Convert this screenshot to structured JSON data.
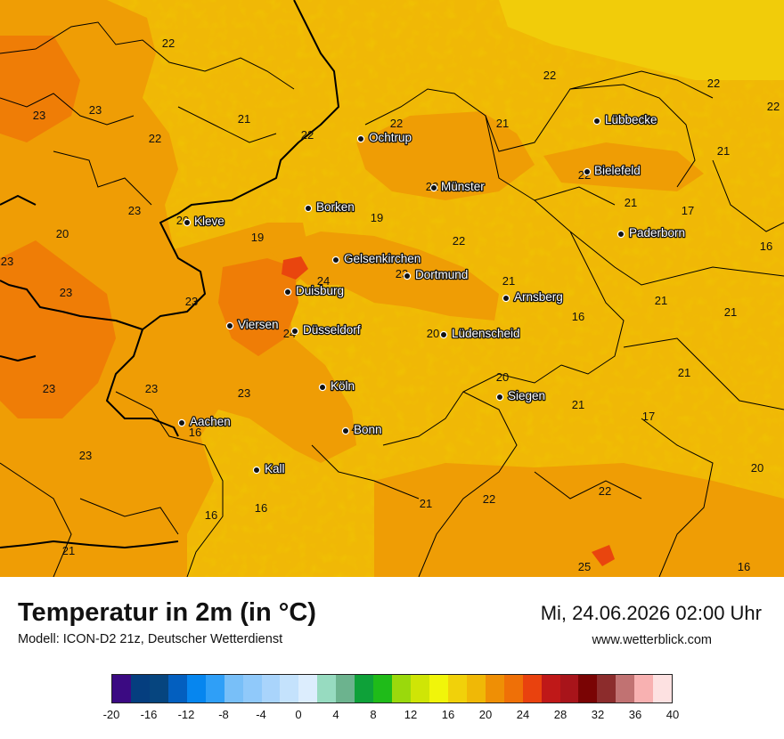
{
  "map": {
    "colors": {
      "c16": "#f1cc0a",
      "c20": "#f0b806",
      "c22": "#ef9d05",
      "c24": "#ef7d06",
      "c26": "#e9450e",
      "border_national": "#000000",
      "border_regional": "#000000"
    },
    "cities": [
      {
        "name": "Lübbecke"
      },
      {
        "name": "Ochtrup"
      },
      {
        "name": "Bielefeld"
      },
      {
        "name": "Münster"
      },
      {
        "name": "Borken"
      },
      {
        "name": "Kleve"
      },
      {
        "name": "Paderborn"
      },
      {
        "name": "Gelsenkirchen"
      },
      {
        "name": "Dortmund"
      },
      {
        "name": "Duisburg"
      },
      {
        "name": "Arnsberg"
      },
      {
        "name": "Viersen"
      },
      {
        "name": "Düsseldorf"
      },
      {
        "name": "Lüdenscheid"
      },
      {
        "name": "Köln"
      },
      {
        "name": "Siegen"
      },
      {
        "name": "Aachen"
      },
      {
        "name": "Bonn"
      },
      {
        "name": "Kall"
      }
    ],
    "values": [
      "22",
      "22",
      "23",
      "23",
      "22",
      "21",
      "22",
      "22",
      "21",
      "21",
      "22",
      "22",
      "21",
      "22",
      "22",
      "21",
      "23",
      "19",
      "17",
      "20",
      "19",
      "22",
      "16",
      "23",
      "23",
      "24",
      "21",
      "23",
      "21",
      "16",
      "21",
      "24",
      "20",
      "23",
      "23",
      "23",
      "20",
      "21",
      "17",
      "21",
      "23",
      "16",
      "20",
      "4",
      "21",
      "20",
      "23",
      "22",
      "22",
      "16",
      "16",
      "25",
      "16",
      "21"
    ]
  },
  "footer": {
    "title": "Temperatur in 2m (in °C)",
    "subtitle": "Modell: ICON-D2 21z, Deutscher Wetterdienst",
    "datetime": "Mi, 24.06.2026 02:00 Uhr",
    "website": "www.wetterblick.com"
  },
  "legend": {
    "colors": [
      "#3b0a82",
      "#053e7f",
      "#06457f",
      "#035fbf",
      "#0686ef",
      "#2f9ff7",
      "#78bff8",
      "#90c9fa",
      "#a9d4fb",
      "#c4e2fc",
      "#dcedfd",
      "#97dbc0",
      "#6cb38e",
      "#0ea139",
      "#1fbb19",
      "#9ad90c",
      "#cfe506",
      "#f1f50a",
      "#f1d10a",
      "#f0b806",
      "#ef8f05",
      "#ef7007",
      "#e9420e",
      "#bf1818",
      "#a8141a",
      "#7a0404",
      "#8c2c2c",
      "#c17272",
      "#f8b1b1",
      "#fde1e1"
    ],
    "ticks": [
      "-20",
      "-16",
      "-12",
      "-8",
      "-4",
      "0",
      "4",
      "8",
      "12",
      "16",
      "20",
      "24",
      "28",
      "32",
      "36",
      "40"
    ]
  }
}
